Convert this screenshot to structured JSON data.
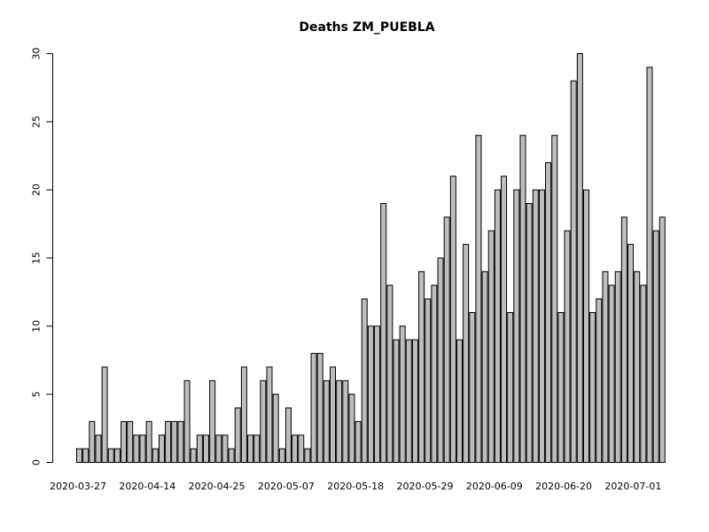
{
  "chart_data": {
    "type": "bar",
    "title": "Deaths ZM_PUEBLA",
    "xlabel": "",
    "ylabel": "",
    "ylim": [
      0,
      30
    ],
    "y_ticks": [
      0,
      5,
      10,
      15,
      20,
      25,
      30
    ],
    "x_tick_labels": [
      "2020-03-27",
      "2020-04-14",
      "2020-04-25",
      "2020-05-07",
      "2020-05-18",
      "2020-05-29",
      "2020-06-09",
      "2020-06-20",
      "2020-07-01"
    ],
    "values": [
      1,
      1,
      3,
      2,
      7,
      1,
      1,
      3,
      3,
      2,
      2,
      3,
      1,
      2,
      3,
      3,
      3,
      6,
      1,
      2,
      2,
      6,
      2,
      2,
      1,
      4,
      7,
      2,
      2,
      6,
      7,
      5,
      1,
      4,
      2,
      2,
      1,
      8,
      8,
      6,
      7,
      6,
      6,
      5,
      3,
      12,
      10,
      10,
      19,
      13,
      9,
      10,
      9,
      9,
      14,
      12,
      13,
      15,
      18,
      21,
      9,
      16,
      11,
      24,
      14,
      17,
      20,
      21,
      11,
      20,
      24,
      19,
      20,
      20,
      22,
      24,
      11,
      17,
      28,
      30,
      20,
      11,
      12,
      14,
      13,
      14,
      18,
      16,
      14,
      13,
      29,
      17,
      18
    ],
    "bar_fill": "#bebebe",
    "bar_stroke": "#000000",
    "grid": false,
    "legend": "none"
  }
}
